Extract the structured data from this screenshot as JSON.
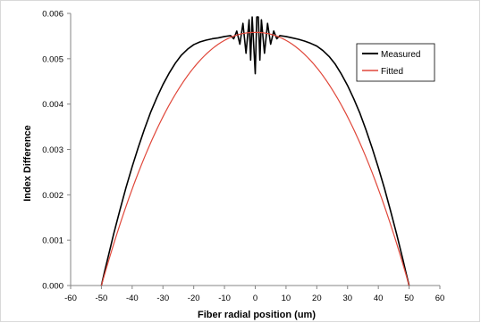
{
  "chart_data": {
    "type": "line",
    "title": "",
    "xlabel": "Fiber radial position (um)",
    "ylabel": "Index Difference",
    "xlim": [
      -60,
      60
    ],
    "ylim": [
      0,
      0.006
    ],
    "x_ticks": [
      "-60",
      "-50",
      "-40",
      "-30",
      "-20",
      "-10",
      "0",
      "10",
      "20",
      "30",
      "40",
      "50",
      "60"
    ],
    "y_ticks": [
      "0.000",
      "0.001",
      "0.002",
      "0.003",
      "0.004",
      "0.005",
      "0.006"
    ],
    "grid": false,
    "legend_position": "top-right",
    "series": [
      {
        "name": "Measured",
        "color": "#000000",
        "points": [
          [
            -50,
            0.0
          ],
          [
            -49,
            0.0003
          ],
          [
            -48,
            0.00058
          ],
          [
            -46,
            0.00114
          ],
          [
            -44,
            0.00166
          ],
          [
            -42,
            0.00216
          ],
          [
            -40,
            0.00262
          ],
          [
            -38,
            0.00305
          ],
          [
            -36,
            0.00345
          ],
          [
            -34,
            0.00382
          ],
          [
            -32,
            0.00414
          ],
          [
            -30,
            0.00443
          ],
          [
            -28,
            0.00468
          ],
          [
            -26,
            0.0049
          ],
          [
            -24,
            0.00508
          ],
          [
            -22,
            0.00521
          ],
          [
            -20,
            0.00531
          ],
          [
            -18,
            0.00537
          ],
          [
            -16,
            0.00541
          ],
          [
            -14,
            0.00544
          ],
          [
            -12,
            0.00546
          ],
          [
            -10,
            0.00549
          ],
          [
            -9,
            0.0055
          ],
          [
            -8,
            0.00551
          ],
          [
            -7,
            0.00544
          ],
          [
            -6,
            0.00561
          ],
          [
            -5,
            0.00532
          ],
          [
            -4,
            0.00578
          ],
          [
            -3,
            0.00512
          ],
          [
            -2,
            0.00586
          ],
          [
            -1.5,
            0.00497
          ],
          [
            -1,
            0.00592
          ],
          [
            0,
            0.00467
          ],
          [
            0.5,
            0.00592
          ],
          [
            1,
            0.00592
          ],
          [
            1.5,
            0.00497
          ],
          [
            2,
            0.00586
          ],
          [
            3,
            0.00512
          ],
          [
            4,
            0.00578
          ],
          [
            5,
            0.00532
          ],
          [
            6,
            0.00561
          ],
          [
            7,
            0.00544
          ],
          [
            8,
            0.00551
          ],
          [
            9,
            0.0055
          ],
          [
            10,
            0.00549
          ],
          [
            12,
            0.00546
          ],
          [
            14,
            0.00543
          ],
          [
            16,
            0.00539
          ],
          [
            18,
            0.00534
          ],
          [
            20,
            0.00528
          ],
          [
            22,
            0.00518
          ],
          [
            24,
            0.00505
          ],
          [
            26,
            0.00488
          ],
          [
            28,
            0.00466
          ],
          [
            30,
            0.00441
          ],
          [
            32,
            0.00412
          ],
          [
            34,
            0.0038
          ],
          [
            36,
            0.00343
          ],
          [
            38,
            0.00303
          ],
          [
            40,
            0.0026
          ],
          [
            42,
            0.00214
          ],
          [
            44,
            0.00164
          ],
          [
            46,
            0.00112
          ],
          [
            48,
            0.00057
          ],
          [
            49,
            0.00028
          ],
          [
            50,
            0.0
          ]
        ]
      },
      {
        "name": "Fitted",
        "color": "#e0473a",
        "curve": {
          "peak": 0.00558,
          "core_radius": 50,
          "exponent": 2.15
        }
      }
    ]
  }
}
